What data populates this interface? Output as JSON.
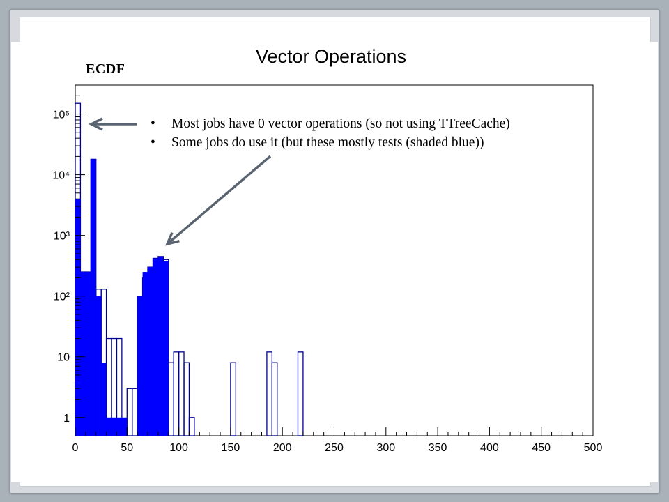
{
  "slide": {
    "side_label": "ECDF",
    "bullets": [
      "Most jobs have 0 vector operations (so not using TTreeCache)",
      "Some jobs do use it (but these mostly tests (shaded blue))"
    ],
    "bullet_glyph": "•"
  },
  "colors": {
    "fill": "#0000ff",
    "outline": "#00008f",
    "arrow": "#596470"
  },
  "chart_data": {
    "type": "bar",
    "title": "Vector Operations",
    "xlabel": "",
    "ylabel": "",
    "xlim": [
      0,
      500
    ],
    "y_scale": "log",
    "ylim": [
      0.5,
      300000
    ],
    "bin_width": 5,
    "x_ticks": [
      0,
      50,
      100,
      150,
      200,
      250,
      300,
      350,
      400,
      450,
      500
    ],
    "x_tick_labels": [
      "0",
      "50",
      "100",
      "150",
      "200",
      "250",
      "300",
      "350",
      "400",
      "450",
      "500"
    ],
    "y_ticks": [
      1,
      10,
      100,
      1000,
      10000,
      100000
    ],
    "y_tick_labels": [
      "1",
      "10",
      "10²",
      "10³",
      "10⁴",
      "10⁵"
    ],
    "series": [
      {
        "style": "outline",
        "x": [
          0,
          5,
          10,
          15,
          20,
          25,
          30,
          35,
          40,
          45,
          50,
          55,
          60,
          65,
          70,
          75,
          80,
          85,
          90,
          95,
          100,
          105,
          110,
          150,
          185,
          190,
          215
        ],
        "values": [
          150000,
          250,
          250,
          18000,
          130,
          130,
          20,
          20,
          20,
          0,
          3,
          3,
          100,
          200,
          300,
          420,
          450,
          400,
          8,
          12,
          12,
          8,
          1,
          8,
          12,
          8,
          12
        ]
      },
      {
        "style": "filled",
        "x": [
          0,
          5,
          10,
          15,
          20,
          25,
          30,
          35,
          40,
          45,
          50,
          55,
          60,
          65,
          70,
          75,
          80,
          85
        ],
        "values": [
          4000,
          250,
          250,
          18000,
          100,
          8,
          1,
          1,
          1,
          1,
          0,
          0,
          100,
          250,
          300,
          420,
          450,
          380
        ]
      }
    ]
  }
}
